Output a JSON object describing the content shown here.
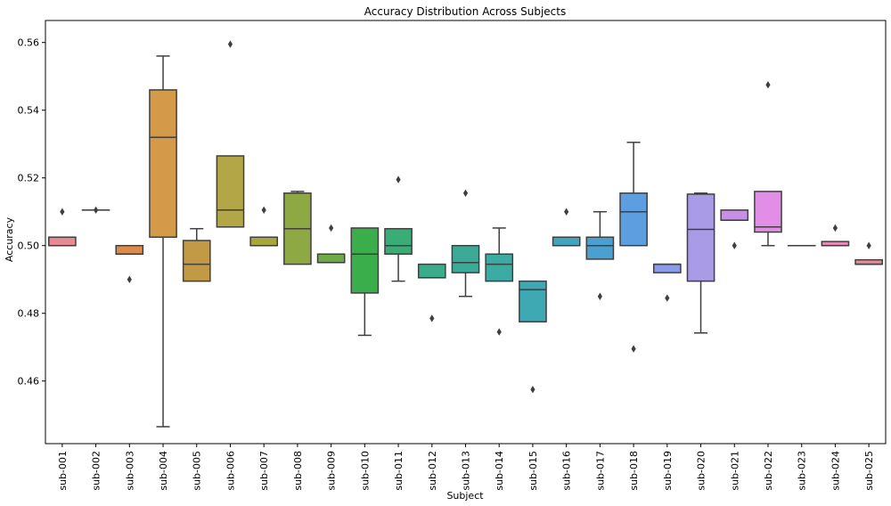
{
  "chart_data": {
    "type": "box",
    "title": "Accuracy Distribution Across Subjects",
    "xlabel": "Subject",
    "ylabel": "Accuracy",
    "ylim": [
      0.4415,
      0.5665
    ],
    "yticks": [
      0.46,
      0.48,
      0.5,
      0.52,
      0.54,
      0.56
    ],
    "ytick_labels": [
      "0.46",
      "0.48",
      "0.50",
      "0.52",
      "0.54",
      "0.56"
    ],
    "grid": false,
    "categories": [
      "sub-001",
      "sub-002",
      "sub-003",
      "sub-004",
      "sub-005",
      "sub-006",
      "sub-007",
      "sub-008",
      "sub-009",
      "sub-010",
      "sub-011",
      "sub-012",
      "sub-013",
      "sub-014",
      "sub-015",
      "sub-016",
      "sub-017",
      "sub-018",
      "sub-019",
      "sub-020",
      "sub-021",
      "sub-022",
      "sub-023",
      "sub-024",
      "sub-025"
    ],
    "boxes": [
      {
        "q1": 0.5,
        "median": 0.5,
        "q3": 0.5025,
        "whisker_low": 0.5,
        "whisker_high": 0.5025,
        "outliers": [
          0.51
        ],
        "color": "#e88a93"
      },
      {
        "q1": 0.5105,
        "median": 0.5105,
        "q3": 0.5105,
        "whisker_low": 0.5105,
        "whisker_high": 0.5105,
        "outliers": [
          0.5105
        ],
        "color": "#e28861"
      },
      {
        "q1": 0.4975,
        "median": 0.4975,
        "q3": 0.5,
        "whisker_low": 0.4975,
        "whisker_high": 0.5,
        "outliers": [
          0.49
        ],
        "color": "#df8a47"
      },
      {
        "q1": 0.5025,
        "median": 0.532,
        "q3": 0.546,
        "whisker_low": 0.4465,
        "whisker_high": 0.556,
        "outliers": [],
        "color": "#d49a4a"
      },
      {
        "q1": 0.4895,
        "median": 0.4945,
        "q3": 0.5015,
        "whisker_low": 0.4895,
        "whisker_high": 0.505,
        "outliers": [],
        "color": "#c29a46"
      },
      {
        "q1": 0.5055,
        "median": 0.5105,
        "q3": 0.5265,
        "whisker_low": 0.5055,
        "whisker_high": 0.5265,
        "outliers": [
          0.5595
        ],
        "color": "#b3a646"
      },
      {
        "q1": 0.5,
        "median": 0.5,
        "q3": 0.5025,
        "whisker_low": 0.5,
        "whisker_high": 0.5025,
        "outliers": [
          0.5105
        ],
        "color": "#a7a73e"
      },
      {
        "q1": 0.4945,
        "median": 0.505,
        "q3": 0.5155,
        "whisker_low": 0.4945,
        "whisker_high": 0.516,
        "outliers": [],
        "color": "#8ea843"
      },
      {
        "q1": 0.495,
        "median": 0.495,
        "q3": 0.4975,
        "whisker_low": 0.495,
        "whisker_high": 0.4975,
        "outliers": [
          0.5052
        ],
        "color": "#6eaa45"
      },
      {
        "q1": 0.486,
        "median": 0.4975,
        "q3": 0.5052,
        "whisker_low": 0.4735,
        "whisker_high": 0.5052,
        "outliers": [],
        "color": "#3aae4b"
      },
      {
        "q1": 0.4975,
        "median": 0.5,
        "q3": 0.505,
        "whisker_low": 0.4895,
        "whisker_high": 0.505,
        "outliers": [
          0.5195
        ],
        "color": "#3aad76"
      },
      {
        "q1": 0.4905,
        "median": 0.4905,
        "q3": 0.4945,
        "whisker_low": 0.4905,
        "whisker_high": 0.4945,
        "outliers": [
          0.4785
        ],
        "color": "#3aac8a"
      },
      {
        "q1": 0.492,
        "median": 0.495,
        "q3": 0.5,
        "whisker_low": 0.485,
        "whisker_high": 0.5,
        "outliers": [
          0.5155
        ],
        "color": "#3bab97"
      },
      {
        "q1": 0.4895,
        "median": 0.4945,
        "q3": 0.4975,
        "whisker_low": 0.4895,
        "whisker_high": 0.5052,
        "outliers": [
          0.4745
        ],
        "color": "#3caba3"
      },
      {
        "q1": 0.4775,
        "median": 0.487,
        "q3": 0.4895,
        "whisker_low": 0.4775,
        "whisker_high": 0.4895,
        "outliers": [
          0.4575
        ],
        "color": "#3ea8b3"
      },
      {
        "q1": 0.5,
        "median": 0.5,
        "q3": 0.5025,
        "whisker_low": 0.5,
        "whisker_high": 0.5025,
        "outliers": [
          0.51
        ],
        "color": "#42a5c0"
      },
      {
        "q1": 0.496,
        "median": 0.5,
        "q3": 0.5025,
        "whisker_low": 0.496,
        "whisker_high": 0.51,
        "outliers": [
          0.485
        ],
        "color": "#4aa0d0"
      },
      {
        "q1": 0.5,
        "median": 0.51,
        "q3": 0.5155,
        "whisker_low": 0.5,
        "whisker_high": 0.5305,
        "outliers": [
          0.4695
        ],
        "color": "#5d9ee0"
      },
      {
        "q1": 0.492,
        "median": 0.4945,
        "q3": 0.4945,
        "whisker_low": 0.492,
        "whisker_high": 0.4945,
        "outliers": [
          0.4845
        ],
        "color": "#8a9be8"
      },
      {
        "q1": 0.4895,
        "median": 0.5048,
        "q3": 0.5152,
        "whisker_low": 0.4742,
        "whisker_high": 0.5155,
        "outliers": [],
        "color": "#a99be6"
      },
      {
        "q1": 0.5075,
        "median": 0.5075,
        "q3": 0.5105,
        "whisker_low": 0.5075,
        "whisker_high": 0.5105,
        "outliers": [
          0.5
        ],
        "color": "#c88fe6"
      },
      {
        "q1": 0.504,
        "median": 0.5055,
        "q3": 0.516,
        "whisker_low": 0.5,
        "whisker_high": 0.516,
        "outliers": [
          0.5475
        ],
        "color": "#e38ee6"
      },
      {
        "q1": 0.5,
        "median": 0.5,
        "q3": 0.5,
        "whisker_low": 0.5,
        "whisker_high": 0.5,
        "outliers": [],
        "color": "#e58bcf"
      },
      {
        "q1": 0.5,
        "median": 0.5,
        "q3": 0.5012,
        "whisker_low": 0.5,
        "whisker_high": 0.5012,
        "outliers": [
          0.5052
        ],
        "color": "#e78ab4"
      },
      {
        "q1": 0.4945,
        "median": 0.4945,
        "q3": 0.4958,
        "whisker_low": 0.4945,
        "whisker_high": 0.4958,
        "outliers": [
          0.5
        ],
        "color": "#e78a9b"
      }
    ]
  }
}
